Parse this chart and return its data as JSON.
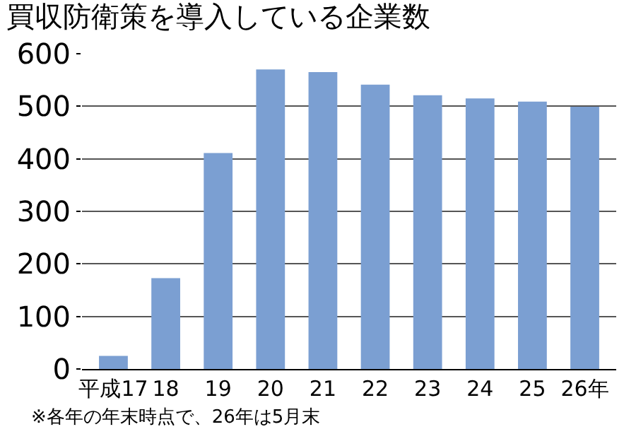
{
  "chart_data": {
    "type": "bar",
    "title": "買収防衛策を導入している企業数",
    "categories": [
      "平成17",
      "18",
      "19",
      "20",
      "21",
      "22",
      "23",
      "24",
      "25",
      "26年"
    ],
    "values": [
      25,
      173,
      411,
      570,
      565,
      541,
      521,
      515,
      509,
      499
    ],
    "color": "#7b9fd2",
    "ylim": [
      0,
      600
    ],
    "yticks": [
      0,
      100,
      200,
      300,
      400,
      500,
      600
    ],
    "grid": "y",
    "annotations": [
      "※各年の年末時点で、26年は5月末"
    ]
  }
}
